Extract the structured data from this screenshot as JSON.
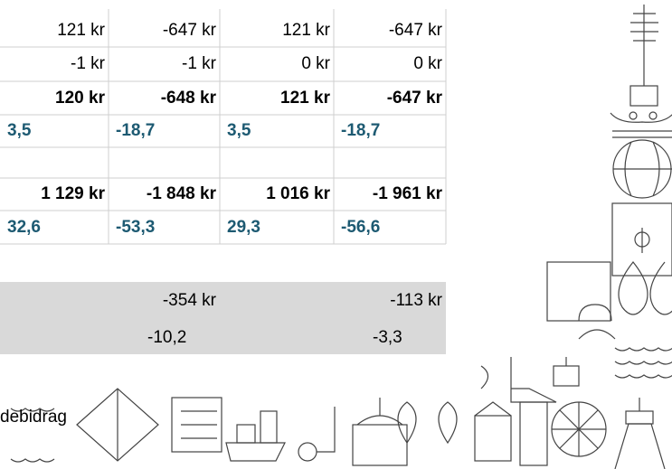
{
  "table": {
    "rows": [
      [
        "121 kr",
        "-647 kr",
        "121 kr",
        "-647 kr"
      ],
      [
        "-1 kr",
        "-1 kr",
        "0 kr",
        "0 kr"
      ],
      [
        "120 kr",
        "-648 kr",
        "121 kr",
        "-647 kr"
      ],
      [
        "3,5",
        "-18,7",
        "3,5",
        "-18,7"
      ],
      [
        "1 129 kr",
        "-1 848 kr",
        "1 016 kr",
        "-1 961 kr"
      ],
      [
        "32,6",
        "-53,3",
        "29,3",
        "-56,6"
      ]
    ]
  },
  "summary": {
    "rows": [
      [
        "-354 kr",
        "-113 kr"
      ],
      [
        "-10,2",
        "-3,3"
      ]
    ]
  },
  "footer_text": "debidrag"
}
